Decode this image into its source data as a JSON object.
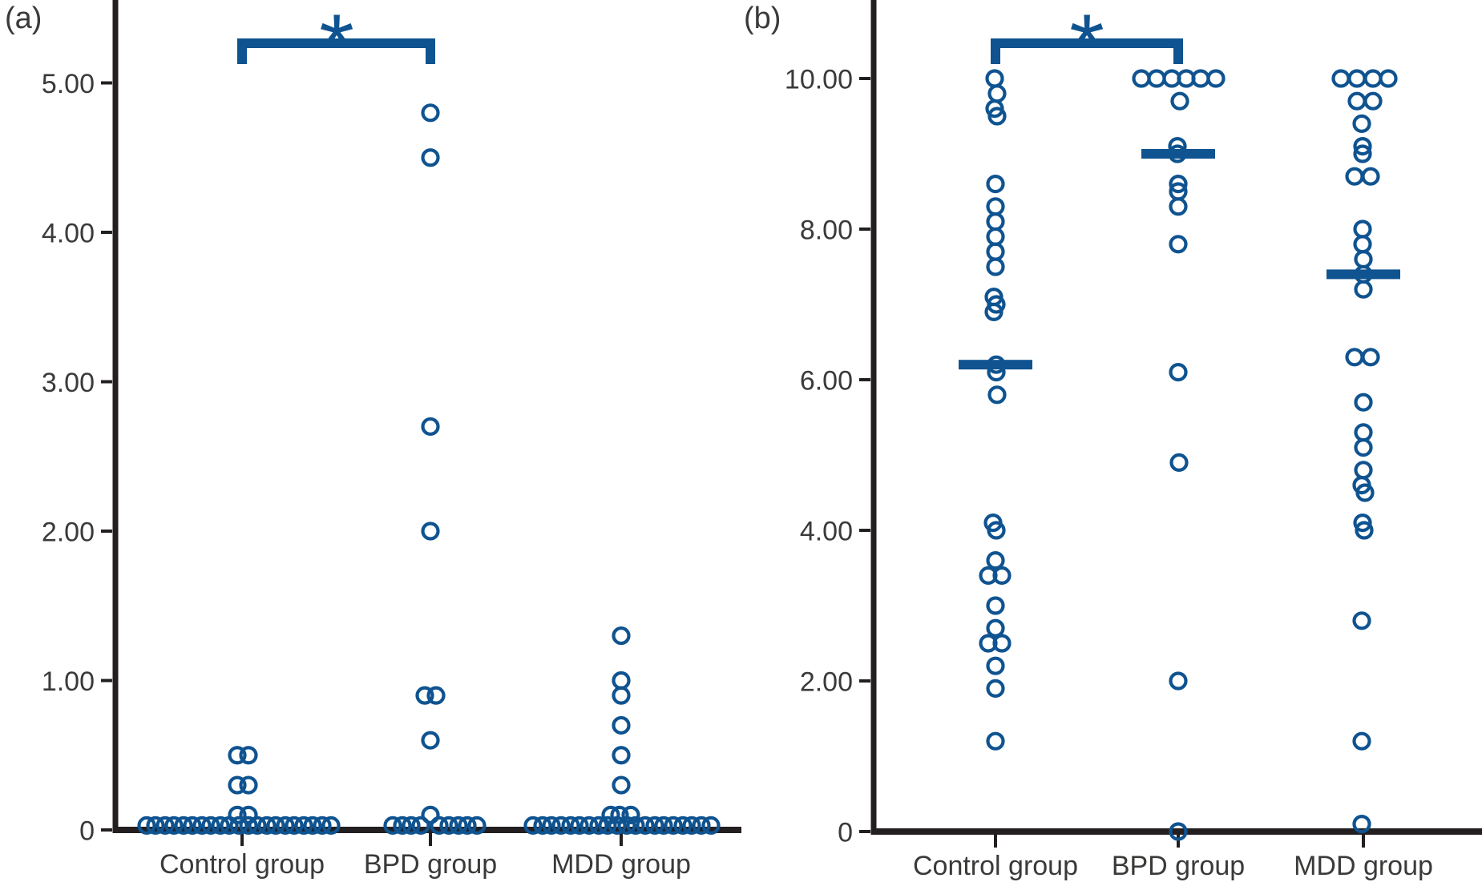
{
  "style": {
    "point_color": "#0f5390",
    "significance_color": "#0f5390",
    "axis_color": "#231f20",
    "text_color": "#3a3a39",
    "background": "#ffffff"
  },
  "chart_data": [
    {
      "label": "(a)",
      "type": "scatter",
      "subtype": "strip-plot-open-circles",
      "ylim": [
        0,
        5.55
      ],
      "grid": false,
      "legend": "none",
      "yticks": [
        {
          "value": 0,
          "label": "0"
        },
        {
          "value": 1,
          "label": "1.00"
        },
        {
          "value": 2,
          "label": "2.00"
        },
        {
          "value": 3,
          "label": "3.00"
        },
        {
          "value": 4,
          "label": "4.00"
        },
        {
          "value": 5,
          "label": "5.00"
        }
      ],
      "categories": [
        "Control group",
        "BPD group",
        "MDD group"
      ],
      "significance": {
        "between": [
          "Control group",
          "BPD group"
        ],
        "symbol": "*"
      },
      "groups": [
        {
          "name": "Control group",
          "median": null,
          "points": [
            [
              0.03,
              -119
            ],
            [
              0.03,
              -108
            ],
            [
              0.03,
              -96
            ],
            [
              0.03,
              -85
            ],
            [
              0.03,
              -73
            ],
            [
              0.03,
              -62
            ],
            [
              0.03,
              -50
            ],
            [
              0.03,
              -39
            ],
            [
              0.03,
              -27
            ],
            [
              0.03,
              -16
            ],
            [
              0.03,
              -4
            ],
            [
              0.03,
              8
            ],
            [
              0.03,
              19
            ],
            [
              0.03,
              31
            ],
            [
              0.03,
              42
            ],
            [
              0.03,
              54
            ],
            [
              0.03,
              65
            ],
            [
              0.03,
              77
            ],
            [
              0.03,
              88
            ],
            [
              0.03,
              100
            ],
            [
              0.03,
              111
            ],
            [
              0.1,
              -6
            ],
            [
              0.1,
              8
            ],
            [
              0.3,
              -6
            ],
            [
              0.3,
              8
            ],
            [
              0.5,
              -6
            ],
            [
              0.5,
              8
            ]
          ]
        },
        {
          "name": "BPD group",
          "median": null,
          "points": [
            [
              0.03,
              -47
            ],
            [
              0.03,
              -35
            ],
            [
              0.03,
              -24
            ],
            [
              0.03,
              -12
            ],
            [
              0.03,
              11
            ],
            [
              0.03,
              23
            ],
            [
              0.03,
              35
            ],
            [
              0.03,
              46
            ],
            [
              0.03,
              58
            ],
            [
              0.1,
              0
            ],
            [
              0.6,
              0
            ],
            [
              0.9,
              -7
            ],
            [
              0.9,
              7
            ],
            [
              2.0,
              0
            ],
            [
              2.7,
              0
            ],
            [
              4.5,
              0
            ],
            [
              4.8,
              0
            ]
          ]
        },
        {
          "name": "MDD group",
          "median": null,
          "points": [
            [
              0.03,
              -110
            ],
            [
              0.03,
              -98
            ],
            [
              0.03,
              -87
            ],
            [
              0.03,
              -75
            ],
            [
              0.03,
              -63
            ],
            [
              0.03,
              -52
            ],
            [
              0.03,
              -40
            ],
            [
              0.03,
              -28
            ],
            [
              0.03,
              -17
            ],
            [
              0.03,
              -5
            ],
            [
              0.03,
              7
            ],
            [
              0.03,
              18
            ],
            [
              0.03,
              30
            ],
            [
              0.03,
              42
            ],
            [
              0.03,
              53
            ],
            [
              0.03,
              65
            ],
            [
              0.03,
              77
            ],
            [
              0.03,
              88
            ],
            [
              0.03,
              100
            ],
            [
              0.03,
              112
            ],
            [
              0.1,
              -13
            ],
            [
              0.1,
              -2
            ],
            [
              0.1,
              12
            ],
            [
              0.3,
              0
            ],
            [
              0.5,
              0
            ],
            [
              0.7,
              0
            ],
            [
              0.9,
              0
            ],
            [
              1.0,
              0
            ],
            [
              1.3,
              0
            ]
          ]
        }
      ]
    },
    {
      "label": "(b)",
      "type": "scatter",
      "subtype": "strip-plot-open-circles",
      "ylim": [
        0,
        11.0
      ],
      "grid": false,
      "legend": "none",
      "yticks": [
        {
          "value": 0,
          "label": "0"
        },
        {
          "value": 2,
          "label": "2.00"
        },
        {
          "value": 4,
          "label": "4.00"
        },
        {
          "value": 6,
          "label": "6.00"
        },
        {
          "value": 8,
          "label": "8.00"
        },
        {
          "value": 10,
          "label": "10.00"
        }
      ],
      "categories": [
        "Control group",
        "BPD group",
        "MDD group"
      ],
      "significance": {
        "between": [
          "Control group",
          "BPD group"
        ],
        "symbol": "*"
      },
      "groups": [
        {
          "name": "Control group",
          "median": 6.2,
          "points": [
            [
              10.0,
              -1
            ],
            [
              9.8,
              2
            ],
            [
              9.6,
              -1
            ],
            [
              9.5,
              2
            ],
            [
              8.6,
              0
            ],
            [
              8.3,
              0
            ],
            [
              8.1,
              0
            ],
            [
              7.9,
              0
            ],
            [
              7.7,
              0
            ],
            [
              7.5,
              0
            ],
            [
              7.1,
              -2
            ],
            [
              7.0,
              1
            ],
            [
              6.9,
              -2
            ],
            [
              6.2,
              1
            ],
            [
              6.1,
              1
            ],
            [
              5.8,
              2
            ],
            [
              4.1,
              -3
            ],
            [
              4.0,
              1
            ],
            [
              3.6,
              0
            ],
            [
              3.4,
              -9
            ],
            [
              3.4,
              8
            ],
            [
              3.0,
              0
            ],
            [
              2.7,
              0
            ],
            [
              2.5,
              -9
            ],
            [
              2.5,
              8
            ],
            [
              2.2,
              0
            ],
            [
              1.9,
              0
            ],
            [
              1.2,
              0
            ]
          ]
        },
        {
          "name": "BPD group",
          "median": 9.0,
          "points": [
            [
              10.0,
              -46
            ],
            [
              10.0,
              -27
            ],
            [
              10.0,
              -8
            ],
            [
              10.0,
              10
            ],
            [
              10.0,
              28
            ],
            [
              10.0,
              47
            ],
            [
              9.7,
              2
            ],
            [
              9.1,
              -1
            ],
            [
              9.0,
              -1
            ],
            [
              8.6,
              0
            ],
            [
              8.5,
              0
            ],
            [
              8.3,
              0
            ],
            [
              7.8,
              0
            ],
            [
              6.1,
              0
            ],
            [
              4.9,
              1
            ],
            [
              2.0,
              0
            ],
            [
              0.0,
              0
            ]
          ]
        },
        {
          "name": "MDD group",
          "median": 7.4,
          "points": [
            [
              10.0,
              -28
            ],
            [
              10.0,
              -8
            ],
            [
              10.0,
              12
            ],
            [
              10.0,
              31
            ],
            [
              9.7,
              -8
            ],
            [
              9.7,
              12
            ],
            [
              9.4,
              -2
            ],
            [
              9.1,
              -1
            ],
            [
              9.0,
              -1
            ],
            [
              8.7,
              -11
            ],
            [
              8.7,
              9
            ],
            [
              8.0,
              -1
            ],
            [
              7.8,
              -1
            ],
            [
              7.6,
              0
            ],
            [
              7.4,
              0
            ],
            [
              7.2,
              0
            ],
            [
              6.3,
              -11
            ],
            [
              6.3,
              9
            ],
            [
              5.7,
              0
            ],
            [
              5.3,
              0
            ],
            [
              5.1,
              0
            ],
            [
              4.8,
              0
            ],
            [
              4.6,
              -2
            ],
            [
              4.5,
              2
            ],
            [
              4.1,
              -1
            ],
            [
              4.0,
              1
            ],
            [
              2.8,
              -2
            ],
            [
              1.2,
              -2
            ],
            [
              0.1,
              -2
            ]
          ]
        }
      ]
    }
  ]
}
